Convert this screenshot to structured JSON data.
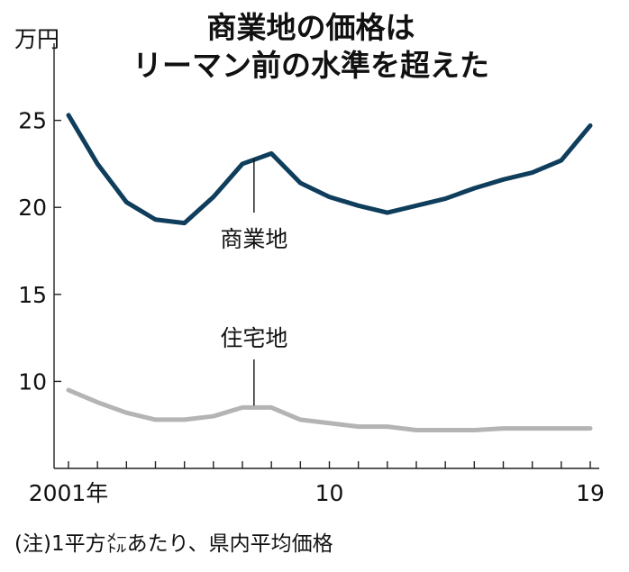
{
  "chart_data": {
    "type": "line",
    "title_lines": [
      "商業地の価格は",
      "リーマン前の水準を超えた"
    ],
    "unit_label": "万円",
    "x": [
      2001,
      2002,
      2003,
      2004,
      2005,
      2006,
      2007,
      2008,
      2009,
      2010,
      2011,
      2012,
      2013,
      2014,
      2015,
      2016,
      2017,
      2018,
      2019
    ],
    "x_tick_labels": [
      {
        "x": 2001,
        "label": "2001年"
      },
      {
        "x": 2010,
        "label": "10"
      },
      {
        "x": 2019,
        "label": "19"
      }
    ],
    "y_ticks": [
      10,
      15,
      20,
      25
    ],
    "ylim": [
      5,
      27
    ],
    "xlim": [
      2001,
      2019
    ],
    "grid": false,
    "series": [
      {
        "name": "商業地",
        "color": "#0f3d5c",
        "values": [
          25.3,
          22.5,
          20.3,
          19.3,
          19.1,
          20.6,
          22.5,
          23.1,
          21.4,
          20.6,
          20.1,
          19.7,
          20.1,
          20.5,
          21.1,
          21.6,
          22.0,
          22.7,
          24.7
        ]
      },
      {
        "name": "住宅地",
        "color": "#b4b4b4",
        "values": [
          9.5,
          8.8,
          8.2,
          7.8,
          7.8,
          8.0,
          8.5,
          8.5,
          7.8,
          7.6,
          7.4,
          7.4,
          7.2,
          7.2,
          7.2,
          7.3,
          7.3,
          7.3,
          7.3
        ]
      }
    ],
    "annotations": [
      {
        "series": "商業地",
        "text": "商業地",
        "x": 2008
      },
      {
        "series": "住宅地",
        "text": "住宅地",
        "x": 2008
      }
    ],
    "note": "(注)1平方㍍あたり、県内平均価格"
  }
}
